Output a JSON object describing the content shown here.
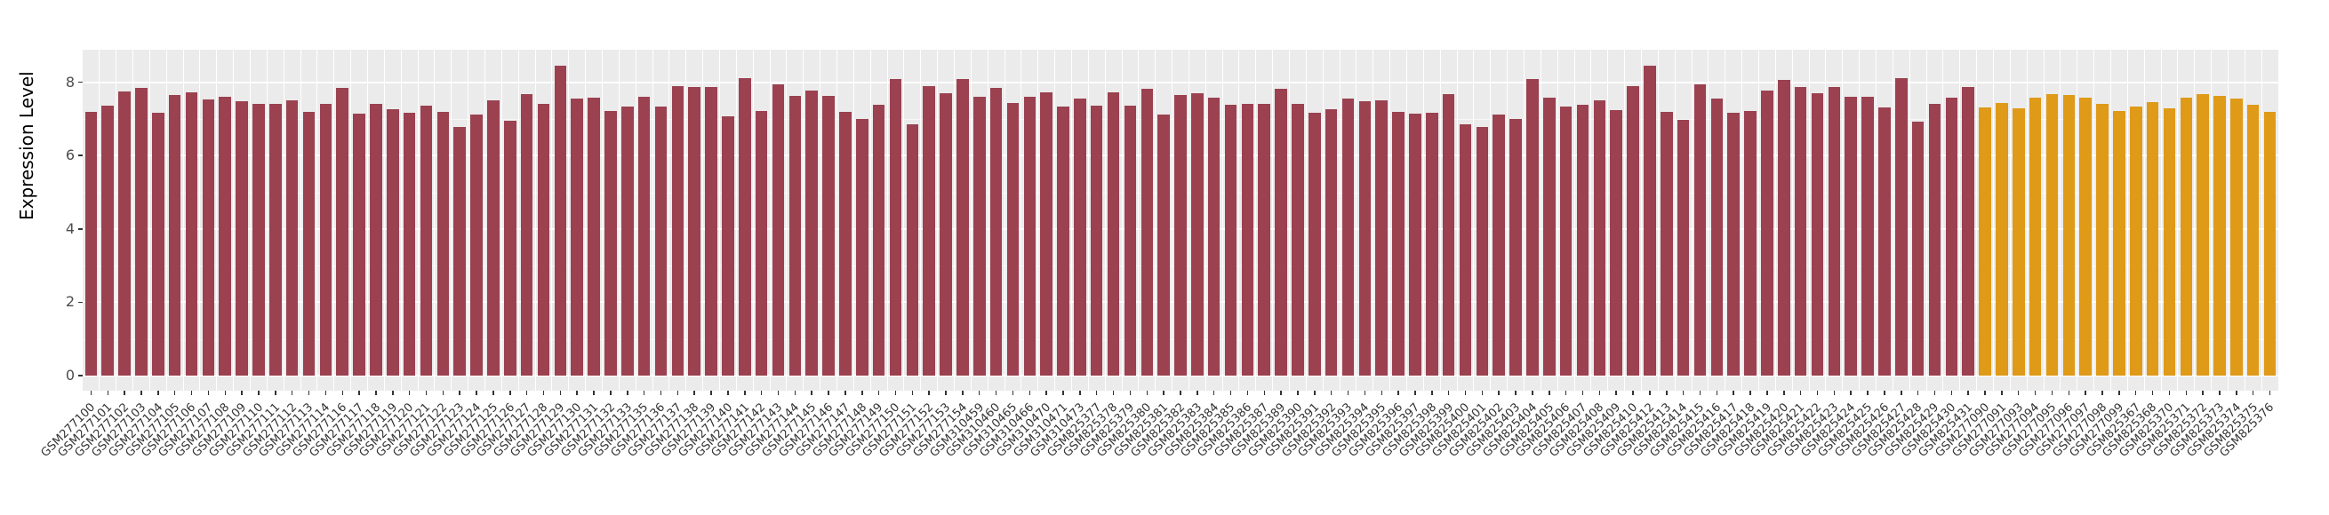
{
  "chart_data": {
    "type": "bar",
    "title": "",
    "xlabel": "",
    "ylabel": "Expression Level",
    "ylim": [
      0,
      8.9
    ],
    "yticks": [
      0,
      2,
      4,
      6,
      8
    ],
    "ytick_labels": [
      "0",
      "2",
      "4",
      "6",
      "8"
    ],
    "grid": "on",
    "legend_position": "none",
    "panel_background": "#EBEBEB",
    "gridline_color": "#FFFFFF",
    "tick_color": "#333333",
    "axis_text_color": "#4D4D4D",
    "group_colors": {
      "maroon": "#9B4150",
      "orange": "#DF9A18"
    },
    "bars": [
      {
        "label": "GSM277100",
        "value": 7.19,
        "group": "maroon"
      },
      {
        "label": "GSM277101",
        "value": 7.36,
        "group": "maroon"
      },
      {
        "label": "GSM277102",
        "value": 7.74,
        "group": "maroon"
      },
      {
        "label": "GSM277103",
        "value": 7.84,
        "group": "maroon"
      },
      {
        "label": "GSM277104",
        "value": 7.16,
        "group": "maroon"
      },
      {
        "label": "GSM277105",
        "value": 7.66,
        "group": "maroon"
      },
      {
        "label": "GSM277106",
        "value": 7.72,
        "group": "maroon"
      },
      {
        "label": "GSM277107",
        "value": 7.54,
        "group": "maroon"
      },
      {
        "label": "GSM277108",
        "value": 7.6,
        "group": "maroon"
      },
      {
        "label": "GSM277109",
        "value": 7.47,
        "group": "maroon"
      },
      {
        "label": "GSM277110",
        "value": 7.4,
        "group": "maroon"
      },
      {
        "label": "GSM277111",
        "value": 7.41,
        "group": "maroon"
      },
      {
        "label": "GSM277112",
        "value": 7.5,
        "group": "maroon"
      },
      {
        "label": "GSM277113",
        "value": 7.2,
        "group": "maroon"
      },
      {
        "label": "GSM277114",
        "value": 7.41,
        "group": "maroon"
      },
      {
        "label": "GSM277116",
        "value": 7.84,
        "group": "maroon"
      },
      {
        "label": "GSM277117",
        "value": 7.14,
        "group": "maroon"
      },
      {
        "label": "GSM277118",
        "value": 7.41,
        "group": "maroon"
      },
      {
        "label": "GSM277119",
        "value": 7.27,
        "group": "maroon"
      },
      {
        "label": "GSM277120",
        "value": 7.17,
        "group": "maroon"
      },
      {
        "label": "GSM277121",
        "value": 7.36,
        "group": "maroon"
      },
      {
        "label": "GSM277122",
        "value": 7.18,
        "group": "maroon"
      },
      {
        "label": "GSM277123",
        "value": 6.77,
        "group": "maroon"
      },
      {
        "label": "GSM277124",
        "value": 7.12,
        "group": "maroon"
      },
      {
        "label": "GSM277125",
        "value": 7.5,
        "group": "maroon"
      },
      {
        "label": "GSM277126",
        "value": 6.95,
        "group": "maroon"
      },
      {
        "label": "GSM277127",
        "value": 7.68,
        "group": "maroon"
      },
      {
        "label": "GSM277128",
        "value": 7.41,
        "group": "maroon"
      },
      {
        "label": "GSM277129",
        "value": 8.46,
        "group": "maroon"
      },
      {
        "label": "GSM277130",
        "value": 7.55,
        "group": "maroon"
      },
      {
        "label": "GSM277131",
        "value": 7.57,
        "group": "maroon"
      },
      {
        "label": "GSM277132",
        "value": 7.21,
        "group": "maroon"
      },
      {
        "label": "GSM277133",
        "value": 7.34,
        "group": "maroon"
      },
      {
        "label": "GSM277135",
        "value": 7.6,
        "group": "maroon"
      },
      {
        "label": "GSM277136",
        "value": 7.33,
        "group": "maroon"
      },
      {
        "label": "GSM277137",
        "value": 7.89,
        "group": "maroon"
      },
      {
        "label": "GSM277138",
        "value": 7.86,
        "group": "maroon"
      },
      {
        "label": "GSM277139",
        "value": 7.87,
        "group": "maroon"
      },
      {
        "label": "GSM277140",
        "value": 7.07,
        "group": "maroon"
      },
      {
        "label": "GSM277141",
        "value": 8.11,
        "group": "maroon"
      },
      {
        "label": "GSM277142",
        "value": 7.21,
        "group": "maroon"
      },
      {
        "label": "GSM277143",
        "value": 7.93,
        "group": "maroon"
      },
      {
        "label": "GSM277144",
        "value": 7.62,
        "group": "maroon"
      },
      {
        "label": "GSM277145",
        "value": 7.78,
        "group": "maroon"
      },
      {
        "label": "GSM277146",
        "value": 7.63,
        "group": "maroon"
      },
      {
        "label": "GSM277147",
        "value": 7.19,
        "group": "maroon"
      },
      {
        "label": "GSM277148",
        "value": 6.99,
        "group": "maroon"
      },
      {
        "label": "GSM277149",
        "value": 7.38,
        "group": "maroon"
      },
      {
        "label": "GSM277150",
        "value": 8.09,
        "group": "maroon"
      },
      {
        "label": "GSM277151",
        "value": 6.85,
        "group": "maroon"
      },
      {
        "label": "GSM277152",
        "value": 7.89,
        "group": "maroon"
      },
      {
        "label": "GSM277153",
        "value": 7.7,
        "group": "maroon"
      },
      {
        "label": "GSM277154",
        "value": 8.08,
        "group": "maroon"
      },
      {
        "label": "GSM310459",
        "value": 7.61,
        "group": "maroon"
      },
      {
        "label": "GSM310460",
        "value": 7.84,
        "group": "maroon"
      },
      {
        "label": "GSM310465",
        "value": 7.43,
        "group": "maroon"
      },
      {
        "label": "GSM310466",
        "value": 7.6,
        "group": "maroon"
      },
      {
        "label": "GSM310470",
        "value": 7.73,
        "group": "maroon"
      },
      {
        "label": "GSM310471",
        "value": 7.34,
        "group": "maroon"
      },
      {
        "label": "GSM310473",
        "value": 7.55,
        "group": "maroon"
      },
      {
        "label": "GSM825377",
        "value": 7.36,
        "group": "maroon"
      },
      {
        "label": "GSM825378",
        "value": 7.72,
        "group": "maroon"
      },
      {
        "label": "GSM825379",
        "value": 7.35,
        "group": "maroon"
      },
      {
        "label": "GSM825380",
        "value": 7.83,
        "group": "maroon"
      },
      {
        "label": "GSM825381",
        "value": 7.13,
        "group": "maroon"
      },
      {
        "label": "GSM825382",
        "value": 7.65,
        "group": "maroon"
      },
      {
        "label": "GSM825383",
        "value": 7.71,
        "group": "maroon"
      },
      {
        "label": "GSM825384",
        "value": 7.59,
        "group": "maroon"
      },
      {
        "label": "GSM825385",
        "value": 7.39,
        "group": "maroon"
      },
      {
        "label": "GSM825386",
        "value": 7.4,
        "group": "maroon"
      },
      {
        "label": "GSM825387",
        "value": 7.4,
        "group": "maroon"
      },
      {
        "label": "GSM825389",
        "value": 7.82,
        "group": "maroon"
      },
      {
        "label": "GSM825390",
        "value": 7.41,
        "group": "maroon"
      },
      {
        "label": "GSM825391",
        "value": 7.16,
        "group": "maroon"
      },
      {
        "label": "GSM825392",
        "value": 7.26,
        "group": "maroon"
      },
      {
        "label": "GSM825393",
        "value": 7.55,
        "group": "maroon"
      },
      {
        "label": "GSM825394",
        "value": 7.48,
        "group": "maroon"
      },
      {
        "label": "GSM825395",
        "value": 7.5,
        "group": "maroon"
      },
      {
        "label": "GSM825396",
        "value": 7.19,
        "group": "maroon"
      },
      {
        "label": "GSM825397",
        "value": 7.15,
        "group": "maroon"
      },
      {
        "label": "GSM825398",
        "value": 7.17,
        "group": "maroon"
      },
      {
        "label": "GSM825399",
        "value": 7.68,
        "group": "maroon"
      },
      {
        "label": "GSM825400",
        "value": 6.85,
        "group": "maroon"
      },
      {
        "label": "GSM825401",
        "value": 6.77,
        "group": "maroon"
      },
      {
        "label": "GSM825402",
        "value": 7.11,
        "group": "maroon"
      },
      {
        "label": "GSM825403",
        "value": 6.99,
        "group": "maroon"
      },
      {
        "label": "GSM825404",
        "value": 8.08,
        "group": "maroon"
      },
      {
        "label": "GSM825405",
        "value": 7.58,
        "group": "maroon"
      },
      {
        "label": "GSM825406",
        "value": 7.34,
        "group": "maroon"
      },
      {
        "label": "GSM825407",
        "value": 7.39,
        "group": "maroon"
      },
      {
        "label": "GSM825408",
        "value": 7.5,
        "group": "maroon"
      },
      {
        "label": "GSM825409",
        "value": 7.23,
        "group": "maroon"
      },
      {
        "label": "GSM825410",
        "value": 7.9,
        "group": "maroon"
      },
      {
        "label": "GSM825412",
        "value": 8.46,
        "group": "maroon"
      },
      {
        "label": "GSM825413",
        "value": 7.2,
        "group": "maroon"
      },
      {
        "label": "GSM825414",
        "value": 6.98,
        "group": "maroon"
      },
      {
        "label": "GSM825415",
        "value": 7.94,
        "group": "maroon"
      },
      {
        "label": "GSM825416",
        "value": 7.55,
        "group": "maroon"
      },
      {
        "label": "GSM825417",
        "value": 7.16,
        "group": "maroon"
      },
      {
        "label": "GSM825418",
        "value": 7.21,
        "group": "maroon"
      },
      {
        "label": "GSM825419",
        "value": 7.78,
        "group": "maroon"
      },
      {
        "label": "GSM825420",
        "value": 8.07,
        "group": "maroon"
      },
      {
        "label": "GSM825421",
        "value": 7.86,
        "group": "maroon"
      },
      {
        "label": "GSM825422",
        "value": 7.7,
        "group": "maroon"
      },
      {
        "label": "GSM825423",
        "value": 7.88,
        "group": "maroon"
      },
      {
        "label": "GSM825424",
        "value": 7.61,
        "group": "maroon"
      },
      {
        "label": "GSM825425",
        "value": 7.61,
        "group": "maroon"
      },
      {
        "label": "GSM825426",
        "value": 7.32,
        "group": "maroon"
      },
      {
        "label": "GSM825427",
        "value": 8.1,
        "group": "maroon"
      },
      {
        "label": "GSM825428",
        "value": 6.93,
        "group": "maroon"
      },
      {
        "label": "GSM825429",
        "value": 7.4,
        "group": "maroon"
      },
      {
        "label": "GSM825430",
        "value": 7.59,
        "group": "maroon"
      },
      {
        "label": "GSM825431",
        "value": 7.86,
        "group": "maroon"
      },
      {
        "label": "GSM277090",
        "value": 7.32,
        "group": "orange"
      },
      {
        "label": "GSM277091",
        "value": 7.44,
        "group": "orange"
      },
      {
        "label": "GSM277093",
        "value": 7.28,
        "group": "orange"
      },
      {
        "label": "GSM277094",
        "value": 7.59,
        "group": "orange"
      },
      {
        "label": "GSM277095",
        "value": 7.67,
        "group": "orange"
      },
      {
        "label": "GSM277096",
        "value": 7.64,
        "group": "orange"
      },
      {
        "label": "GSM277097",
        "value": 7.57,
        "group": "orange"
      },
      {
        "label": "GSM277098",
        "value": 7.4,
        "group": "orange"
      },
      {
        "label": "GSM277099",
        "value": 7.21,
        "group": "orange"
      },
      {
        "label": "GSM825367",
        "value": 7.33,
        "group": "orange"
      },
      {
        "label": "GSM825368",
        "value": 7.45,
        "group": "orange"
      },
      {
        "label": "GSM825370",
        "value": 7.29,
        "group": "orange"
      },
      {
        "label": "GSM825371",
        "value": 7.58,
        "group": "orange"
      },
      {
        "label": "GSM825372",
        "value": 7.67,
        "group": "orange"
      },
      {
        "label": "GSM825373",
        "value": 7.63,
        "group": "orange"
      },
      {
        "label": "GSM825374",
        "value": 7.56,
        "group": "orange"
      },
      {
        "label": "GSM825375",
        "value": 7.38,
        "group": "orange"
      },
      {
        "label": "GSM825376",
        "value": 7.2,
        "group": "orange"
      }
    ]
  }
}
